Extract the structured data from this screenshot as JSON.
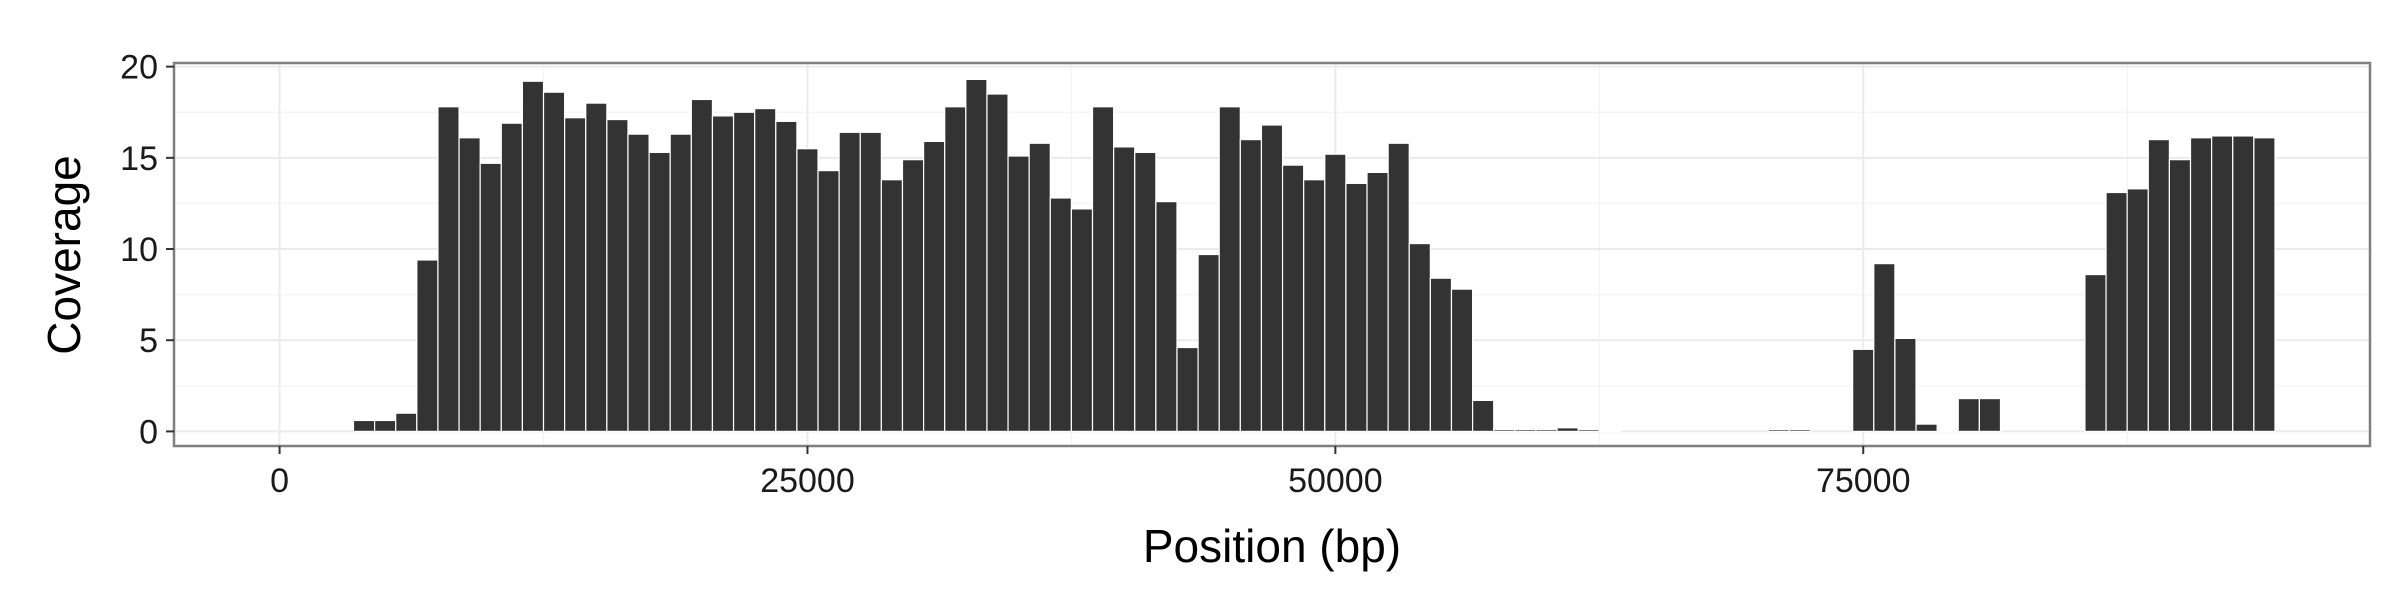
{
  "chart_data": {
    "type": "bar",
    "title": "",
    "xlabel": "Position (bp)",
    "ylabel": "Coverage",
    "xlim": [
      -5000,
      99000
    ],
    "ylim": [
      -0.8,
      20.2
    ],
    "xticks": [
      0,
      25000,
      50000,
      75000
    ],
    "xtick_labels": [
      "0",
      "25000",
      "50000",
      "75000"
    ],
    "yticks": [
      0,
      5,
      10,
      15,
      20
    ],
    "ytick_labels": [
      "0",
      "5",
      "10",
      "15",
      "20"
    ],
    "bin_width": 1000,
    "grid": true,
    "legend": "none",
    "bar_color": "#333333",
    "x": [
      4000,
      5000,
      6000,
      7000,
      8000,
      9000,
      10000,
      11000,
      12000,
      13000,
      14000,
      15000,
      16000,
      17000,
      18000,
      19000,
      20000,
      21000,
      22000,
      23000,
      24000,
      25000,
      26000,
      27000,
      28000,
      29000,
      30000,
      31000,
      32000,
      33000,
      34000,
      35000,
      36000,
      37000,
      38000,
      39000,
      40000,
      41000,
      42000,
      43000,
      44000,
      45000,
      46000,
      47000,
      48000,
      49000,
      50000,
      51000,
      52000,
      53000,
      54000,
      55000,
      56000,
      57000,
      58000,
      59000,
      60000,
      61000,
      62000,
      63000,
      71000,
      72000,
      75000,
      76000,
      77000,
      78000,
      79000,
      80000,
      81000,
      86000,
      87000,
      88000,
      89000,
      90000,
      91000,
      92000,
      93000,
      94000
    ],
    "values": [
      0.6,
      0.6,
      1.0,
      9.4,
      17.8,
      16.1,
      14.7,
      16.9,
      19.2,
      18.6,
      17.2,
      18.0,
      17.1,
      16.3,
      15.3,
      16.3,
      18.2,
      17.3,
      17.5,
      17.7,
      17.0,
      15.5,
      14.3,
      16.4,
      16.4,
      13.8,
      14.9,
      15.9,
      17.8,
      19.3,
      18.5,
      15.1,
      15.8,
      12.8,
      12.2,
      17.8,
      15.6,
      15.3,
      12.6,
      4.6,
      9.7,
      17.8,
      16.0,
      16.8,
      14.6,
      13.8,
      15.2,
      13.6,
      14.2,
      15.8,
      10.3,
      8.4,
      7.8,
      1.7,
      0.1,
      0.1,
      0.1,
      0.2,
      0.1,
      0.05,
      0.1,
      0.1,
      4.5,
      9.2,
      5.1,
      0.4,
      0.05,
      1.8,
      1.8,
      8.6,
      13.1,
      13.3,
      16.0,
      14.9,
      16.1,
      16.2,
      16.2,
      16.1
    ]
  }
}
